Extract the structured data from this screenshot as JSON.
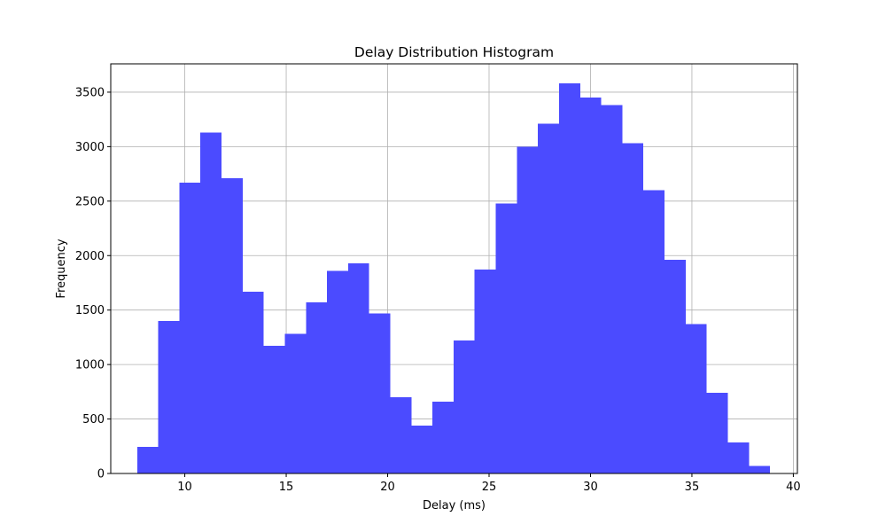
{
  "chart_data": {
    "type": "bar",
    "title": "Delay Distribution Histogram",
    "xlabel": "Delay (ms)",
    "ylabel": "Frequency",
    "xlim": [
      6.35,
      40.2
    ],
    "ylim": [
      0,
      3760
    ],
    "xticks": [
      10,
      15,
      20,
      25,
      30,
      35,
      40
    ],
    "yticks": [
      0,
      500,
      1000,
      1500,
      2000,
      2500,
      3000,
      3500
    ],
    "grid": true,
    "bar_color": "#4b4bff",
    "bins": [
      {
        "start": 7.65,
        "end": 8.69,
        "count": 245
      },
      {
        "start": 8.69,
        "end": 9.73,
        "count": 1400
      },
      {
        "start": 9.73,
        "end": 10.77,
        "count": 2670
      },
      {
        "start": 10.77,
        "end": 11.81,
        "count": 3130
      },
      {
        "start": 11.81,
        "end": 12.85,
        "count": 2710
      },
      {
        "start": 12.85,
        "end": 13.89,
        "count": 1670
      },
      {
        "start": 13.89,
        "end": 14.93,
        "count": 1170
      },
      {
        "start": 14.93,
        "end": 15.97,
        "count": 1280
      },
      {
        "start": 15.97,
        "end": 17.01,
        "count": 1570
      },
      {
        "start": 17.01,
        "end": 18.05,
        "count": 1860
      },
      {
        "start": 18.05,
        "end": 19.09,
        "count": 1930
      },
      {
        "start": 19.09,
        "end": 20.13,
        "count": 1470
      },
      {
        "start": 20.13,
        "end": 21.17,
        "count": 700
      },
      {
        "start": 21.17,
        "end": 22.21,
        "count": 440
      },
      {
        "start": 22.21,
        "end": 23.25,
        "count": 660
      },
      {
        "start": 23.25,
        "end": 24.29,
        "count": 1220
      },
      {
        "start": 24.29,
        "end": 25.33,
        "count": 1870
      },
      {
        "start": 25.33,
        "end": 26.37,
        "count": 2480
      },
      {
        "start": 26.37,
        "end": 27.41,
        "count": 3000
      },
      {
        "start": 27.41,
        "end": 28.45,
        "count": 3210
      },
      {
        "start": 28.45,
        "end": 29.49,
        "count": 3580
      },
      {
        "start": 29.49,
        "end": 30.53,
        "count": 3450
      },
      {
        "start": 30.53,
        "end": 31.57,
        "count": 3380
      },
      {
        "start": 31.57,
        "end": 32.61,
        "count": 3030
      },
      {
        "start": 32.61,
        "end": 33.65,
        "count": 2600
      },
      {
        "start": 33.65,
        "end": 34.69,
        "count": 1960
      },
      {
        "start": 34.69,
        "end": 35.73,
        "count": 1370
      },
      {
        "start": 35.73,
        "end": 36.77,
        "count": 740
      },
      {
        "start": 36.77,
        "end": 37.81,
        "count": 285
      },
      {
        "start": 37.81,
        "end": 38.85,
        "count": 70
      }
    ]
  }
}
